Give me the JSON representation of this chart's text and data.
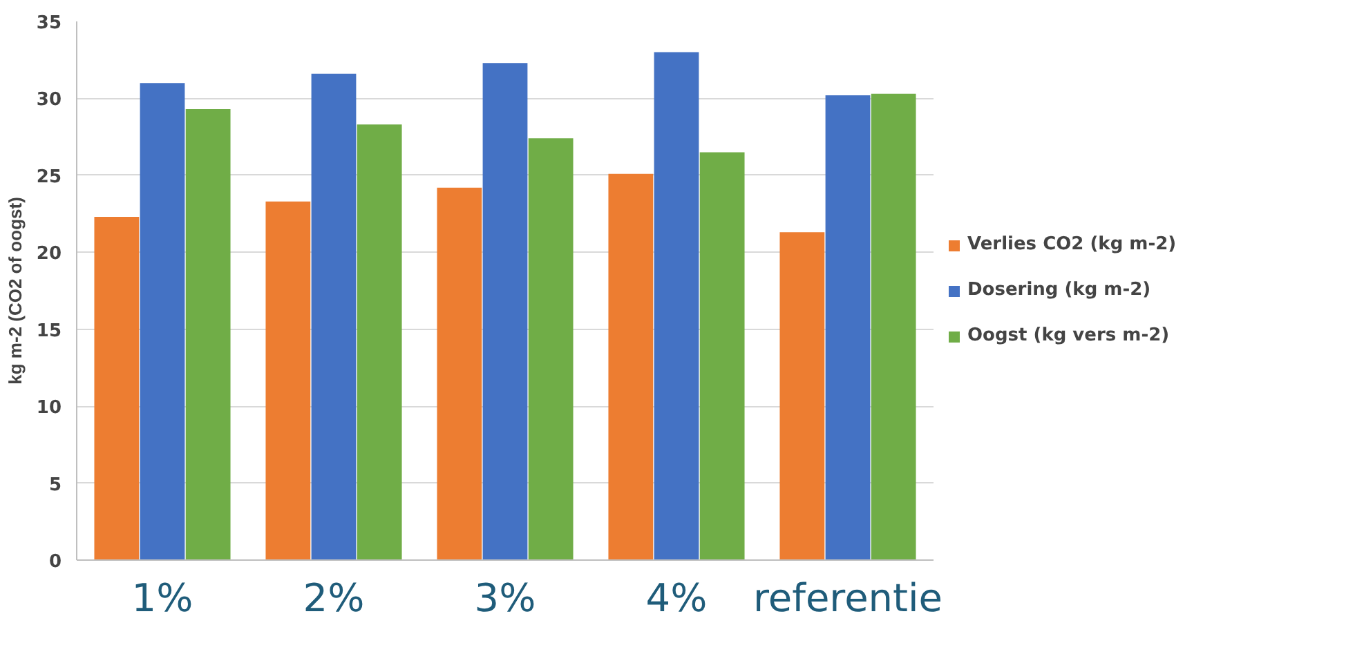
{
  "chart_data": {
    "type": "bar",
    "ylabel": "kg m-2 (CO2 of oogst)",
    "categories": [
      "1%",
      "2%",
      "3%",
      "4%",
      "referentie"
    ],
    "series": [
      {
        "name": "Verlies CO2 (kg m-2)",
        "color": "#ed7d31",
        "values": [
          22.3,
          23.3,
          24.2,
          25.1,
          21.3
        ]
      },
      {
        "name": "Dosering (kg m-2)",
        "color": "#4472c4",
        "values": [
          31,
          31.6,
          32.3,
          33,
          30.2
        ]
      },
      {
        "name": "Oogst (kg vers m-2)",
        "color": "#70ad47",
        "values": [
          29.3,
          28.3,
          27.4,
          26.5,
          30.3
        ]
      }
    ],
    "ylim": [
      0,
      35
    ],
    "yticks": [
      0,
      5,
      10,
      15,
      20,
      25,
      30,
      35
    ],
    "grid": "y",
    "legend": "right"
  }
}
